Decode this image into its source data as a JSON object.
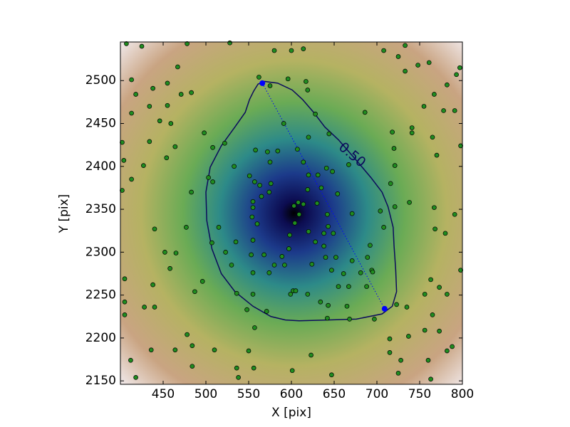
{
  "chart_data": {
    "type": "scatter",
    "xlabel": "X [pix]",
    "ylabel": "Y [pix]",
    "xlim": [
      400,
      800
    ],
    "ylim": [
      2146,
      2545
    ],
    "xticks": [
      450,
      500,
      550,
      600,
      650,
      700,
      750,
      800
    ],
    "yticks": [
      2150,
      2200,
      2250,
      2300,
      2350,
      2400,
      2450,
      2500
    ],
    "series": [
      {
        "color": "#1f8c1f",
        "x": [
          407,
          425,
          478,
          528,
          580,
          600,
          614,
          708,
          725,
          733,
          413,
          438,
          455,
          467,
          483,
          471,
          418,
          413,
          434,
          446,
          455,
          459,
          434,
          464,
          454,
          404,
          402,
          427,
          413,
          402,
          483,
          508,
          508,
          522,
          498,
          562,
          596,
          575,
          617,
          619,
          628,
          686,
          718,
          733,
          748,
          761,
          793,
          797,
          782,
          767,
          755,
          778,
          791,
          741,
          741,
          765,
          798,
          770,
          720,
          721,
          716,
          721,
          738,
          767,
          791,
          768,
          780,
          798,
          763,
          773,
          756,
          782,
          765,
          773,
          788,
          782,
          756,
          737,
          715,
          715,
          728,
          760,
          763,
          725,
          647,
          623,
          601,
          556,
          550,
          536,
          538,
          510,
          484,
          484,
          478,
          464,
          436,
          418,
          412,
          428,
          405,
          405,
          405,
          440,
          438,
          458,
          452,
          440,
          465,
          477,
          487,
          496,
          536,
          555,
          548,
          571,
          602,
          605,
          634,
          643,
          655,
          667,
          668,
          661,
          688,
          694,
          692,
          708,
          704,
          671,
          654,
          648,
          641,
          667,
          631,
          620,
          614,
          607,
          620,
          644,
          591,
          584,
          572,
          558,
          575,
          551,
          557,
          563,
          576,
          574,
          565,
          555,
          555,
          554,
          560,
          555,
          568,
          553,
          535,
          515,
          523,
          530,
          507,
          503,
          533,
          597,
          598,
          604,
          609,
          608,
          603,
          614,
          620,
          628,
          638,
          638,
          643,
          649,
          642,
          630,
          635,
          619,
          647,
          624,
          640,
          589,
          592,
          574,
          555,
          580,
          652,
          671,
          689,
          681,
          695,
          665,
          723,
          735,
          697,
          642,
          557,
          599,
          619
        ],
        "y": [
          2543,
          2540,
          2543,
          2544,
          2535,
          2535,
          2537,
          2535,
          2528,
          2541,
          2501,
          2491,
          2497,
          2516,
          2486,
          2484,
          2484,
          2462,
          2470,
          2453,
          2471,
          2450,
          2429,
          2423,
          2410,
          2407,
          2428,
          2401,
          2385,
          2372,
          2370,
          2382,
          2422,
          2427,
          2439,
          2504,
          2502,
          2494,
          2499,
          2489,
          2461,
          2463,
          2440,
          2511,
          2518,
          2521,
          2507,
          2515,
          2495,
          2484,
          2470,
          2465,
          2465,
          2445,
          2439,
          2434,
          2424,
          2413,
          2421,
          2401,
          2380,
          2353,
          2358,
          2352,
          2344,
          2327,
          2322,
          2279,
          2268,
          2259,
          2251,
          2251,
          2227,
          2208,
          2190,
          2185,
          2209,
          2202,
          2199,
          2183,
          2174,
          2174,
          2152,
          2159,
          2157,
          2180,
          2162,
          2165,
          2185,
          2165,
          2154,
          2186,
          2167,
          2191,
          2204,
          2186,
          2186,
          2154,
          2174,
          2236,
          2227,
          2242,
          2269,
          2236,
          2262,
          2281,
          2300,
          2327,
          2299,
          2329,
          2254,
          2266,
          2252,
          2251,
          2233,
          2231,
          2255,
          2255,
          2242,
          2238,
          2260,
          2260,
          2222,
          2275,
          2260,
          2279,
          2308,
          2329,
          2348,
          2345,
          2368,
          2394,
          2398,
          2402,
          2390,
          2390,
          2405,
          2420,
          2434,
          2438,
          2450,
          2418,
          2417,
          2419,
          2405,
          2389,
          2382,
          2378,
          2380,
          2370,
          2365,
          2359,
          2352,
          2341,
          2333,
          2314,
          2297,
          2297,
          2312,
          2329,
          2300,
          2285,
          2311,
          2387,
          2400,
          2304,
          2320,
          2334,
          2344,
          2358,
          2354,
          2356,
          2324,
          2312,
          2307,
          2322,
          2330,
          2322,
          2344,
          2357,
          2375,
          2373,
          2279,
          2286,
          2294,
          2295,
          2285,
          2276,
          2276,
          2285,
          2294,
          2290,
          2294,
          2276,
          2277,
          2237,
          2239,
          2236,
          2222,
          2223,
          2212,
          2251,
          2251
        ]
      }
    ],
    "contour": {
      "label": "0.50",
      "color": "#0b0b5c",
      "x": [
        564,
        569,
        584,
        601,
        613,
        626,
        639,
        655,
        676,
        693,
        706,
        713,
        719,
        720,
        722,
        723,
        718,
        706,
        676,
        643,
        609,
        593,
        576,
        555,
        534,
        518,
        507,
        501,
        500,
        505,
        518,
        534,
        546,
        551,
        556,
        561
      ],
      "y": [
        2497,
        2499,
        2497,
        2489,
        2478,
        2463,
        2446,
        2431,
        2407,
        2387,
        2370,
        2353,
        2329,
        2308,
        2279,
        2254,
        2237,
        2228,
        2222,
        2221,
        2220,
        2221,
        2225,
        2237,
        2254,
        2275,
        2304,
        2337,
        2370,
        2399,
        2424,
        2446,
        2463,
        2478,
        2488,
        2496
      ]
    },
    "axis_points": {
      "color": "#0000ff",
      "x": [
        566,
        709
      ],
      "y": [
        2497,
        2234
      ]
    }
  }
}
